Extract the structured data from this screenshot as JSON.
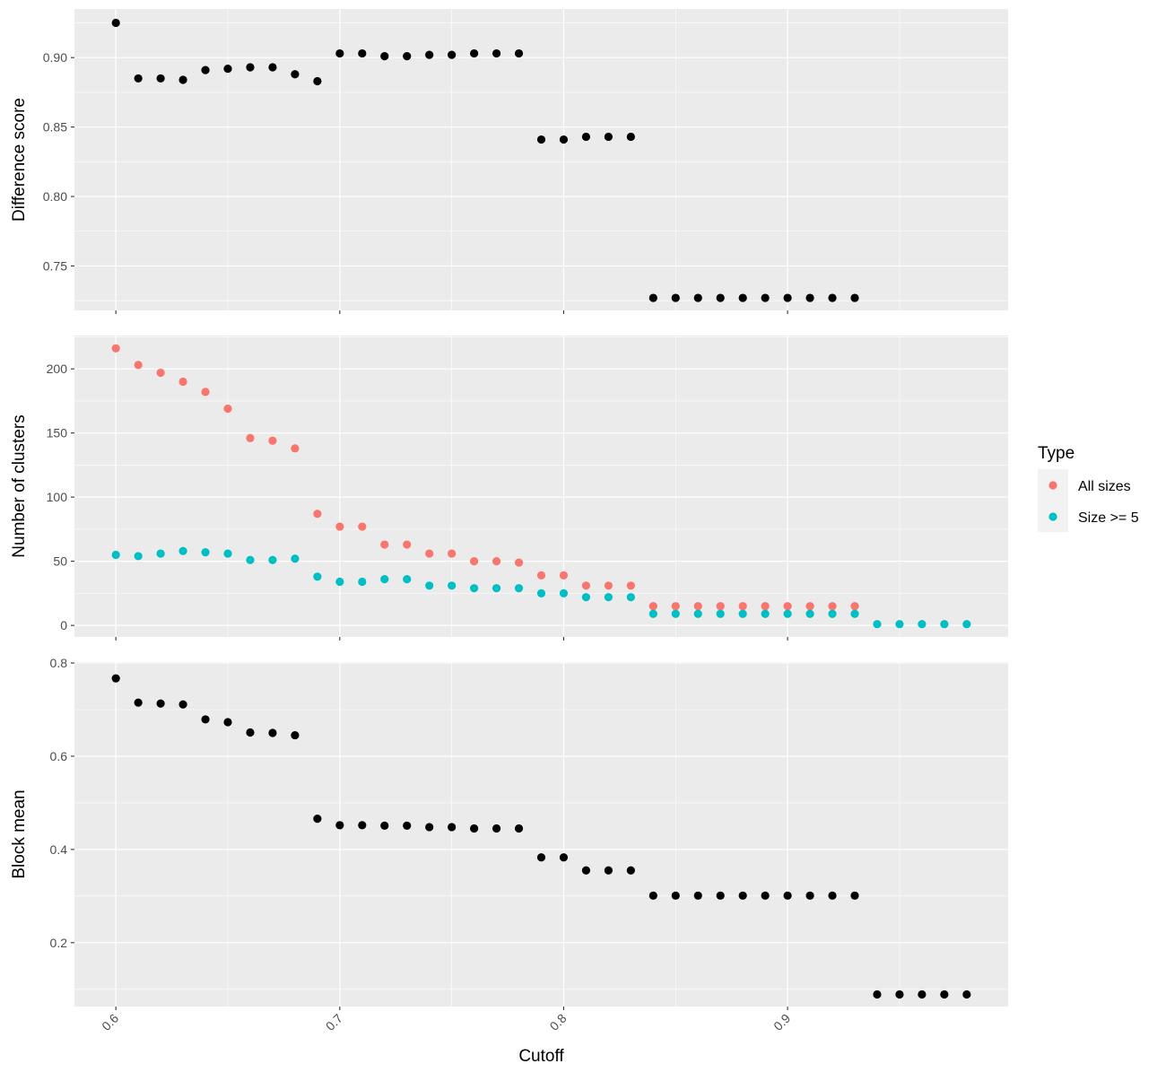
{
  "chart_data": [
    {
      "type": "scatter",
      "ylabel": "Difference score",
      "ylim": [
        0.718,
        0.935
      ],
      "yticks": [
        0.75,
        0.8,
        0.85,
        0.9
      ],
      "ytick_labels": [
        "0.75",
        "0.80",
        "0.85",
        "0.90"
      ],
      "grid": true,
      "series": [
        {
          "color": "#000000",
          "x": [
            0.6,
            0.61,
            0.62,
            0.63,
            0.64,
            0.65,
            0.66,
            0.67,
            0.68,
            0.69,
            0.7,
            0.71,
            0.72,
            0.73,
            0.74,
            0.75,
            0.76,
            0.77,
            0.78,
            0.79,
            0.8,
            0.81,
            0.82,
            0.83,
            0.84,
            0.85,
            0.86,
            0.87,
            0.88,
            0.89,
            0.9,
            0.91,
            0.92,
            0.93
          ],
          "y": [
            0.925,
            0.885,
            0.885,
            0.884,
            0.891,
            0.892,
            0.893,
            0.893,
            0.888,
            0.883,
            0.903,
            0.903,
            0.901,
            0.901,
            0.902,
            0.902,
            0.903,
            0.903,
            0.903,
            0.841,
            0.841,
            0.843,
            0.843,
            0.843,
            0.727,
            0.727,
            0.727,
            0.727,
            0.727,
            0.727,
            0.727,
            0.727,
            0.727,
            0.727
          ]
        }
      ]
    },
    {
      "type": "scatter",
      "ylabel": "Number of clusters",
      "ylim": [
        -9,
        226
      ],
      "yticks": [
        0,
        50,
        100,
        150,
        200
      ],
      "ytick_labels": [
        "0",
        "50",
        "100",
        "150",
        "200"
      ],
      "grid": true,
      "legend": {
        "title": "Type",
        "position": "right",
        "entries": [
          {
            "label": "All sizes",
            "color": "#F8766D"
          },
          {
            "label": "Size >= 5",
            "color": "#00BFC4"
          }
        ]
      },
      "series": [
        {
          "name": "All sizes",
          "color": "#F8766D",
          "x": [
            0.6,
            0.61,
            0.62,
            0.63,
            0.64,
            0.65,
            0.66,
            0.67,
            0.68,
            0.69,
            0.7,
            0.71,
            0.72,
            0.73,
            0.74,
            0.75,
            0.76,
            0.77,
            0.78,
            0.79,
            0.8,
            0.81,
            0.82,
            0.83,
            0.84,
            0.85,
            0.86,
            0.87,
            0.88,
            0.89,
            0.9,
            0.91,
            0.92,
            0.93
          ],
          "y": [
            216,
            203,
            197,
            190,
            182,
            169,
            146,
            144,
            138,
            87,
            77,
            77,
            63,
            63,
            56,
            56,
            50,
            50,
            49,
            39,
            39,
            31,
            31,
            31,
            15,
            15,
            15,
            15,
            15,
            15,
            15,
            15,
            15,
            15
          ]
        },
        {
          "name": "Size >= 5",
          "color": "#00BFC4",
          "x": [
            0.6,
            0.61,
            0.62,
            0.63,
            0.64,
            0.65,
            0.66,
            0.67,
            0.68,
            0.69,
            0.7,
            0.71,
            0.72,
            0.73,
            0.74,
            0.75,
            0.76,
            0.77,
            0.78,
            0.79,
            0.8,
            0.81,
            0.82,
            0.83,
            0.84,
            0.85,
            0.86,
            0.87,
            0.88,
            0.89,
            0.9,
            0.91,
            0.92,
            0.93,
            0.94,
            0.95,
            0.96,
            0.97,
            0.98
          ],
          "y": [
            55,
            54,
            56,
            58,
            57,
            56,
            51,
            51,
            52,
            38,
            34,
            34,
            36,
            36,
            31,
            31,
            29,
            29,
            29,
            25,
            25,
            22,
            22,
            22,
            9,
            9,
            9,
            9,
            9,
            9,
            9,
            9,
            9,
            9,
            1,
            1,
            1,
            1,
            1
          ]
        }
      ]
    },
    {
      "type": "scatter",
      "ylabel": "Block mean",
      "xlabel": "Cutoff",
      "ylim": [
        0.063,
        0.802
      ],
      "xlim": [
        0.5815,
        0.9985
      ],
      "yticks": [
        0.2,
        0.4,
        0.6,
        0.8
      ],
      "ytick_labels": [
        "0.2",
        "0.4",
        "0.6",
        "0.8"
      ],
      "xticks": [
        0.6,
        0.7,
        0.8,
        0.9
      ],
      "xtick_labels": [
        "0.6",
        "0.7",
        "0.8",
        "0.9"
      ],
      "grid": true,
      "series": [
        {
          "color": "#000000",
          "x": [
            0.6,
            0.61,
            0.62,
            0.63,
            0.64,
            0.65,
            0.66,
            0.67,
            0.68,
            0.69,
            0.7,
            0.71,
            0.72,
            0.73,
            0.74,
            0.75,
            0.76,
            0.77,
            0.78,
            0.79,
            0.8,
            0.81,
            0.82,
            0.83,
            0.84,
            0.85,
            0.86,
            0.87,
            0.88,
            0.89,
            0.9,
            0.91,
            0.92,
            0.93,
            0.94,
            0.95,
            0.96,
            0.97,
            0.98
          ],
          "y": [
            0.767,
            0.715,
            0.713,
            0.711,
            0.679,
            0.673,
            0.651,
            0.65,
            0.645,
            0.466,
            0.452,
            0.452,
            0.451,
            0.451,
            0.448,
            0.448,
            0.445,
            0.445,
            0.445,
            0.383,
            0.383,
            0.355,
            0.355,
            0.355,
            0.301,
            0.301,
            0.301,
            0.301,
            0.301,
            0.301,
            0.301,
            0.301,
            0.301,
            0.301,
            0.089,
            0.089,
            0.089,
            0.089,
            0.089
          ]
        }
      ]
    }
  ]
}
